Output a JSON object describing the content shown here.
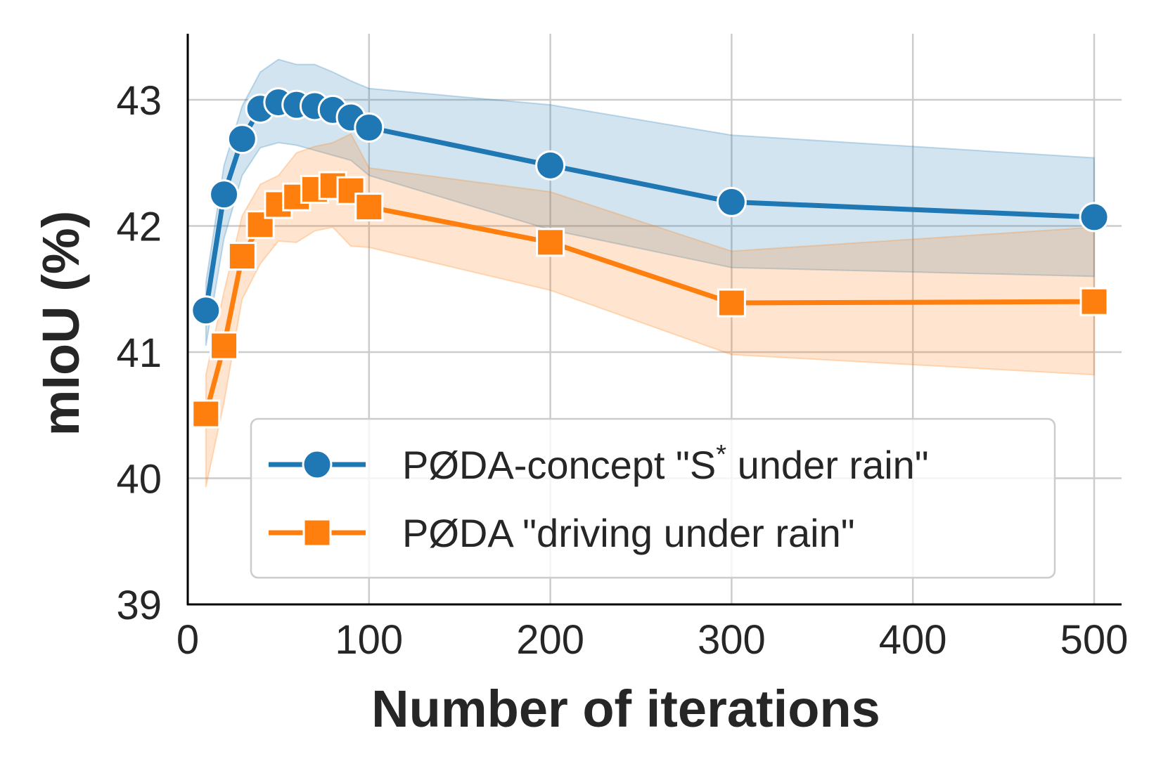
{
  "chart_data": {
    "type": "line",
    "title": "",
    "xlabel": "Number of iterations",
    "ylabel": "mIoU (%)",
    "xlim": [
      0,
      515
    ],
    "ylim": [
      39,
      43.5
    ],
    "xticks": [
      0,
      100,
      200,
      300,
      400,
      500
    ],
    "yticks": [
      39,
      40,
      41,
      42,
      43
    ],
    "grid": true,
    "legend_position": "lower-right",
    "x": [
      10,
      20,
      30,
      40,
      50,
      60,
      70,
      80,
      90,
      100,
      200,
      300,
      500
    ],
    "series": [
      {
        "name": "PØDA-concept \"S* under rain\"",
        "legend_main": "PØDA-concept \"S",
        "legend_sup": "*",
        "legend_tail": " under rain\"",
        "marker": "circle",
        "color": "#1f77b4",
        "band_color": "#1f77b4",
        "values": [
          41.33,
          42.25,
          42.69,
          42.93,
          42.98,
          42.96,
          42.95,
          42.92,
          42.86,
          42.78,
          42.48,
          42.19,
          42.07
        ],
        "lower": [
          41.05,
          41.9,
          42.4,
          42.62,
          42.66,
          42.64,
          42.6,
          42.56,
          42.52,
          42.4,
          41.97,
          41.67,
          41.6
        ],
        "upper": [
          41.55,
          42.48,
          42.95,
          43.22,
          43.32,
          43.28,
          43.28,
          43.22,
          43.15,
          43.09,
          42.96,
          42.72,
          42.54
        ]
      },
      {
        "name": "PØDA \"driving under rain\"",
        "legend_main": "PØDA \"driving under rain\"",
        "legend_sup": "",
        "legend_tail": "",
        "marker": "square",
        "color": "#ff7f0e",
        "band_color": "#ff7f0e",
        "values": [
          40.51,
          41.05,
          41.76,
          42.01,
          42.17,
          42.23,
          42.29,
          42.32,
          42.28,
          42.15,
          41.87,
          41.39,
          41.4
        ],
        "lower": [
          39.93,
          40.6,
          41.42,
          41.7,
          41.88,
          41.87,
          41.96,
          41.99,
          41.84,
          41.83,
          41.49,
          40.98,
          40.82
        ],
        "upper": [
          40.82,
          41.48,
          42.08,
          42.33,
          42.4,
          42.58,
          42.63,
          42.66,
          42.73,
          42.46,
          42.27,
          41.8,
          41.99
        ]
      }
    ]
  }
}
